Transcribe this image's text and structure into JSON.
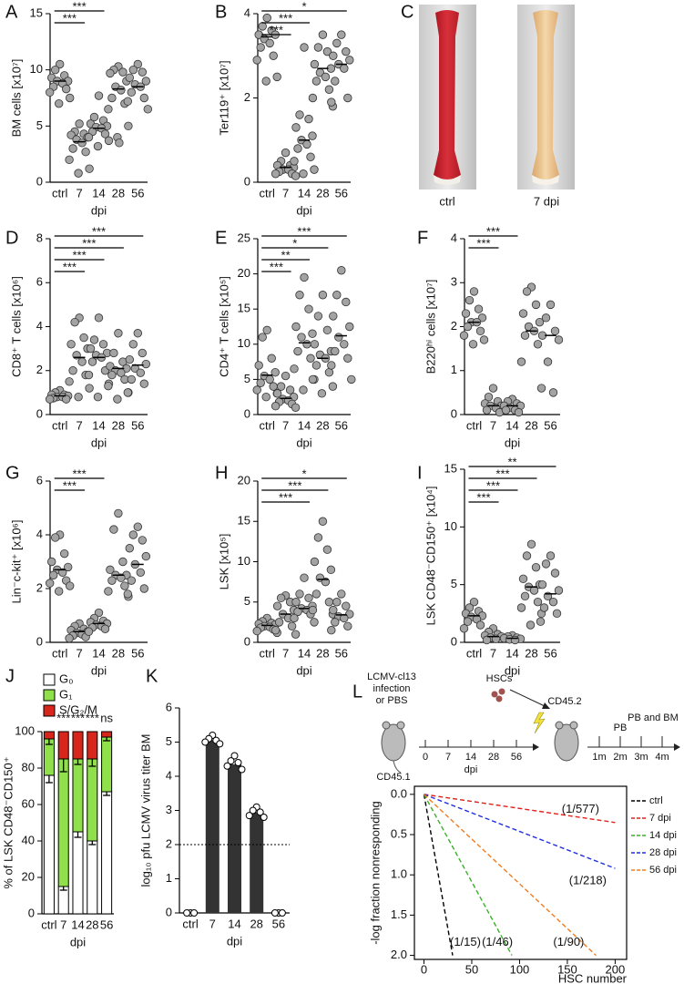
{
  "chart_data": [
    {
      "type": "dotplot",
      "label": "A",
      "ylabel": "BM cells [x10⁷]",
      "xlabel": "dpi",
      "color": "#a3a3a3",
      "categories": [
        "ctrl",
        "7",
        "14",
        "28",
        "56"
      ],
      "values": [
        [
          10.5,
          10,
          9.5,
          9.3,
          9,
          9,
          8.8,
          8.5,
          8.3,
          8,
          7.5,
          7
        ],
        [
          5.2,
          4.5,
          4.3,
          4.2,
          4,
          3.8,
          3.5,
          3,
          2.7,
          2,
          1.2,
          0.8
        ],
        [
          7.7,
          5.8,
          5.5,
          5.2,
          5,
          4.9,
          4.8,
          4.5,
          4.3,
          4,
          3.7,
          3.2
        ],
        [
          10.3,
          10,
          9.8,
          9.7,
          9,
          8.5,
          8.2,
          7.5,
          7,
          6.5,
          5,
          4,
          3.5
        ],
        [
          10.5,
          10,
          9.8,
          9.3,
          9,
          8.7,
          8.5,
          8,
          7.5,
          7.2,
          6.5
        ]
      ],
      "means": [
        9,
        3.6,
        4.8,
        8.3,
        8.5
      ],
      "ylim": [
        0,
        15
      ],
      "yticks": [
        0,
        5,
        10,
        15
      ],
      "significance": [
        {
          "label": "***",
          "span": [
            0,
            2
          ]
        },
        {
          "label": "***",
          "span": [
            0,
            1
          ]
        }
      ]
    },
    {
      "type": "dotplot",
      "label": "B",
      "ylabel": "Ter119⁺ [x10⁷]",
      "xlabel": "dpi",
      "color": "#a3a3a3",
      "categories": [
        "ctrl",
        "7",
        "14",
        "28",
        "56"
      ],
      "values": [
        [
          3.9,
          3.7,
          3.6,
          3.5,
          3.5,
          3.4,
          3.3,
          3.2,
          3.0,
          2.9,
          2.5,
          2.4
        ],
        [
          0.7,
          0.5,
          0.4,
          0.4,
          0.35,
          0.3,
          0.3,
          0.25,
          0.2,
          0.2,
          0.15
        ],
        [
          3.2,
          1.6,
          1.5,
          1.3,
          1.1,
          1.0,
          0.9,
          0.8,
          0.6,
          0.5,
          0.3,
          0.2
        ],
        [
          3.5,
          3.2,
          3.1,
          2.8,
          2.7,
          2.6,
          2.5,
          2.4,
          2.2,
          2.0,
          1.8
        ],
        [
          3.5,
          3.3,
          3.1,
          3.0,
          2.9,
          2.8,
          2.7,
          2.4,
          2.0,
          1.9
        ]
      ],
      "means": [
        3.45,
        0.35,
        1.0,
        2.7,
        2.8
      ],
      "ylim": [
        0,
        4
      ],
      "yticks": [
        0,
        2,
        4
      ],
      "significance": [
        {
          "label": "*",
          "span": [
            0,
            4
          ]
        },
        {
          "label": "***",
          "span": [
            0,
            2
          ]
        },
        {
          "label": "***",
          "span": [
            0,
            1
          ]
        }
      ]
    },
    {
      "type": "dotplot",
      "label": "D",
      "ylabel": "CD8⁺ T cells [x10⁶]",
      "xlabel": "dpi",
      "color": "#a3a3a3",
      "categories": [
        "ctrl",
        "7",
        "14",
        "28",
        "56"
      ],
      "values": [
        [
          1.1,
          1.0,
          0.9,
          0.9,
          0.85,
          0.8,
          0.8,
          0.75,
          0.7,
          0.7
        ],
        [
          4.4,
          4.2,
          3.5,
          3.2,
          3.0,
          2.7,
          2.4,
          2.0,
          1.8,
          1.5,
          1.2,
          0.8
        ],
        [
          4.4,
          3.4,
          3.2,
          3.0,
          2.8,
          2.7,
          2.6,
          2.4,
          2.0,
          1.8,
          1.4,
          0.8
        ],
        [
          3.7,
          2.8,
          2.4,
          2.2,
          2.1,
          2.0,
          1.9,
          1.8,
          1.6,
          1.3,
          1.0,
          0.7
        ],
        [
          3.7,
          3.2,
          2.8,
          2.5,
          2.3,
          2.1,
          1.9,
          1.6,
          1.4,
          1.0
        ]
      ],
      "means": [
        0.85,
        2.6,
        2.6,
        2.1,
        2.25
      ],
      "ylim": [
        0,
        8
      ],
      "yticks": [
        0,
        2,
        4,
        6,
        8
      ],
      "significance": [
        {
          "label": "***",
          "span": [
            0,
            4
          ]
        },
        {
          "label": "***",
          "span": [
            0,
            3
          ]
        },
        {
          "label": "***",
          "span": [
            0,
            2
          ]
        },
        {
          "label": "***",
          "span": [
            0,
            1
          ]
        }
      ]
    },
    {
      "type": "dotplot",
      "label": "E",
      "ylabel": "CD4⁺ T cells [x10⁵]",
      "xlabel": "dpi",
      "color": "#a3a3a3",
      "categories": [
        "ctrl",
        "7",
        "14",
        "28",
        "56"
      ],
      "values": [
        [
          12,
          11,
          8,
          7,
          6,
          5.5,
          5,
          4.5,
          4,
          3.5,
          3,
          2.5
        ],
        [
          5.5,
          4,
          3.5,
          3,
          2.5,
          2.2,
          2,
          1.8,
          1.5,
          1.2,
          1
        ],
        [
          19.5,
          17,
          15,
          12.5,
          11.5,
          11,
          10,
          9,
          8,
          6.5,
          5,
          3.5
        ],
        [
          17,
          14,
          12,
          10,
          9,
          8.5,
          8,
          7,
          6,
          5,
          4,
          3
        ],
        [
          20.5,
          17,
          16,
          14,
          12.5,
          11,
          10,
          9,
          8,
          7,
          5
        ]
      ],
      "means": [
        5.6,
        2.3,
        10.2,
        8,
        11.2
      ],
      "ylim": [
        0,
        25
      ],
      "yticks": [
        0,
        5,
        10,
        15,
        20,
        25
      ],
      "significance": [
        {
          "label": "***",
          "span": [
            0,
            4
          ]
        },
        {
          "label": "*",
          "span": [
            0,
            3
          ]
        },
        {
          "label": "**",
          "span": [
            0,
            2
          ]
        },
        {
          "label": "***",
          "span": [
            0,
            1
          ]
        }
      ]
    },
    {
      "type": "dotplot",
      "label": "F",
      "ylabel": "B220ʰⁱ cells [x10⁷]",
      "xlabel": "dpi",
      "color": "#a3a3a3",
      "categories": [
        "ctrl",
        "7",
        "14",
        "28",
        "56"
      ],
      "values": [
        [
          2.8,
          2.6,
          2.4,
          2.3,
          2.2,
          2.1,
          2.1,
          2.0,
          1.9,
          1.8,
          1.7,
          1.6
        ],
        [
          0.6,
          0.4,
          0.3,
          0.25,
          0.2,
          0.2,
          0.15,
          0.1,
          0.05
        ],
        [
          0.35,
          0.3,
          0.25,
          0.2,
          0.2,
          0.15,
          0.1,
          0.1,
          0.05
        ],
        [
          2.9,
          2.8,
          2.5,
          2.3,
          2.1,
          2.0,
          1.9,
          1.8,
          1.6,
          1.2,
          0.6
        ],
        [
          2.5,
          2.2,
          1.9,
          1.8,
          1.7,
          1.2,
          0.5
        ]
      ],
      "means": [
        2.1,
        0.2,
        0.2,
        1.9,
        1.8
      ],
      "ylim": [
        0,
        4
      ],
      "yticks": [
        0,
        1,
        2,
        3,
        4
      ],
      "significance": [
        {
          "label": "***",
          "span": [
            0,
            2
          ]
        },
        {
          "label": "***",
          "span": [
            0,
            1
          ]
        }
      ]
    },
    {
      "type": "dotplot",
      "label": "G",
      "ylabel": "Lin⁻c-kit⁺ [x10⁶]",
      "xlabel": "dpi",
      "color": "#a3a3a3",
      "categories": [
        "ctrl",
        "7",
        "14",
        "28",
        "56"
      ],
      "values": [
        [
          4.0,
          3.9,
          3.3,
          3.0,
          2.8,
          2.7,
          2.6,
          2.5,
          2.3,
          2.2,
          2.1,
          1.9
        ],
        [
          0.7,
          0.6,
          0.5,
          0.45,
          0.4,
          0.35,
          0.3,
          0.25,
          0.2,
          0.15
        ],
        [
          1.1,
          0.9,
          0.8,
          0.75,
          0.7,
          0.65,
          0.6,
          0.55,
          0.5,
          0.4
        ],
        [
          4.8,
          4.2,
          3.0,
          2.7,
          2.5,
          2.5,
          2.4,
          2.3,
          2.1,
          1.9,
          1.7
        ],
        [
          4.3,
          4.0,
          3.8,
          3.5,
          3.2,
          2.9,
          2.6,
          2.3,
          2.0,
          1.8
        ]
      ],
      "means": [
        2.7,
        0.4,
        0.7,
        2.5,
        2.9
      ],
      "ylim": [
        0,
        6
      ],
      "yticks": [
        0,
        2,
        4,
        6
      ],
      "significance": [
        {
          "label": "***",
          "span": [
            0,
            2
          ]
        },
        {
          "label": "***",
          "span": [
            0,
            1
          ]
        }
      ]
    },
    {
      "type": "dotplot",
      "label": "H",
      "ylabel": "LSK  [x10⁵]",
      "xlabel": "dpi",
      "color": "#a3a3a3",
      "categories": [
        "ctrl",
        "7",
        "14",
        "28",
        "56"
      ],
      "values": [
        [
          3,
          2.6,
          2.4,
          2.3,
          2.2,
          2,
          1.9,
          1.8,
          1.6,
          1.4,
          1.2
        ],
        [
          5.8,
          5.5,
          5,
          4.5,
          4,
          3.5,
          3,
          2.5,
          2,
          1.5,
          1
        ],
        [
          8,
          6,
          5.5,
          5,
          4.5,
          4.2,
          4,
          3.8,
          3.5,
          3,
          2.5
        ],
        [
          15,
          13,
          11.5,
          10,
          9,
          8,
          7.5,
          6,
          5,
          4,
          3.5
        ],
        [
          6,
          5,
          4.5,
          4,
          3.5,
          3.2,
          3,
          2.5,
          2,
          1.5
        ]
      ],
      "means": [
        2.1,
        3.5,
        4.2,
        7.8,
        3.4
      ],
      "ylim": [
        0,
        20
      ],
      "yticks": [
        0,
        5,
        10,
        15,
        20
      ],
      "significance": [
        {
          "label": "*",
          "span": [
            0,
            4
          ]
        },
        {
          "label": "***",
          "span": [
            0,
            3
          ]
        },
        {
          "label": "***",
          "span": [
            0,
            2
          ]
        }
      ]
    },
    {
      "type": "dotplot",
      "label": "I",
      "ylabel": "LSK CD48⁻CD150⁺ [x10⁴]",
      "xlabel": "dpi",
      "color": "#a3a3a3",
      "categories": [
        "ctrl",
        "7",
        "14",
        "28",
        "56"
      ],
      "values": [
        [
          3.5,
          3.0,
          2.7,
          2.5,
          2.3,
          2.2,
          2.0,
          1.8,
          1.5,
          1.2
        ],
        [
          1.2,
          0.9,
          0.7,
          0.6,
          0.5,
          0.4,
          0.3,
          0.2
        ],
        [
          0.6,
          0.5,
          0.4,
          0.35,
          0.3,
          0.25,
          0.2
        ],
        [
          8.5,
          7.5,
          6.5,
          5.5,
          5,
          4.8,
          4.5,
          4,
          3.5,
          3,
          2.5,
          1.5
        ],
        [
          7.5,
          6.8,
          6,
          5,
          4.5,
          4,
          3.5,
          3,
          2.5,
          1.8
        ]
      ],
      "means": [
        2.3,
        0.5,
        0.35,
        4.8,
        4.2
      ],
      "ylim": [
        0,
        15
      ],
      "yticks": [
        0,
        5,
        10,
        15
      ],
      "significance": [
        {
          "label": "**",
          "span": [
            0,
            4
          ]
        },
        {
          "label": "***",
          "span": [
            0,
            3
          ]
        },
        {
          "label": "***",
          "span": [
            0,
            2
          ]
        },
        {
          "label": "***",
          "span": [
            0,
            1
          ]
        }
      ]
    },
    {
      "type": "stacked_bar",
      "label": "J",
      "ylabel": "% of LSK CD48⁻CD150⁺",
      "xlabel": "dpi",
      "legend": "top-left",
      "categories": [
        "ctrl",
        "7",
        "14",
        "28",
        "56"
      ],
      "series": [
        {
          "name": "G₀",
          "color": "#ffffff",
          "values": [
            76,
            15,
            45,
            40,
            67
          ],
          "errors": [
            4,
            2,
            3,
            2,
            2
          ]
        },
        {
          "name": "G₁",
          "color": "#8fe04a",
          "values": [
            20,
            70,
            40,
            45,
            30
          ],
          "errors": [
            3,
            7,
            3,
            4,
            2
          ]
        },
        {
          "name": "S/G₂/M",
          "color": "#d9261c",
          "values": [
            4,
            15,
            15,
            15,
            3
          ]
        }
      ],
      "ylim": [
        0,
        100
      ],
      "yticks": [
        0,
        20,
        40,
        60,
        80,
        100
      ],
      "significance": [
        {
          "label": "***",
          "category": 1
        },
        {
          "label": "***",
          "category": 2
        },
        {
          "label": "***",
          "category": 3
        },
        {
          "label": "ns",
          "category": 4
        }
      ]
    },
    {
      "type": "bar",
      "label": "K",
      "ylabel": "log₁₀ pfu LCMV virus titer BM",
      "xlabel": "dpi",
      "color": "#333333",
      "categories": [
        "ctrl",
        "7",
        "14",
        "28",
        "56"
      ],
      "values": [
        0,
        5.05,
        4.35,
        2.95,
        0
      ],
      "points": [
        [
          0,
          0,
          0
        ],
        [
          5.2,
          5.1,
          5.05,
          5.0,
          4.95
        ],
        [
          4.6,
          4.45,
          4.4,
          4.3,
          4.2
        ],
        [
          3.1,
          3.0,
          2.95,
          2.85,
          2.8
        ],
        [
          0,
          0,
          0
        ]
      ],
      "reference_line": 2,
      "ylim": [
        0,
        6
      ],
      "yticks": [
        0,
        1,
        2,
        3,
        4,
        5,
        6
      ]
    },
    {
      "type": "line",
      "xlabel": "HSC number",
      "ylabel": "-log fraction nonresponding",
      "y_inverted": true,
      "legend": "right",
      "series": [
        {
          "name": "ctrl",
          "color": "#000000",
          "label": "(1/15)",
          "x": [
            0,
            30
          ],
          "values": [
            0,
            2.0
          ]
        },
        {
          "name": "7 dpi",
          "color": "#e0201b",
          "label": "(1/577)",
          "x": [
            0,
            200
          ],
          "values": [
            0,
            0.35
          ]
        },
        {
          "name": "14 dpi",
          "color": "#3ab02a",
          "label": "(1/46)",
          "x": [
            0,
            92
          ],
          "values": [
            0,
            2.0
          ]
        },
        {
          "name": "28 dpi",
          "color": "#1f2fe0",
          "label": "(1/218)",
          "x": [
            0,
            200
          ],
          "values": [
            0,
            0.92
          ]
        },
        {
          "name": "56 dpi",
          "color": "#f07c20",
          "label": "(1/90)",
          "x": [
            0,
            180
          ],
          "values": [
            0,
            2.0
          ]
        }
      ],
      "xlim": [
        -10,
        212
      ],
      "xticks": [
        0,
        50,
        100,
        150,
        200
      ],
      "ylim": [
        -0.1,
        2.05
      ],
      "yticks": [
        {
          "value": 0,
          "label": "0.0"
        },
        0.5,
        {
          "value": 1,
          "label": "1.0"
        },
        1.5,
        {
          "value": 2,
          "label": "2.0"
        }
      ]
    }
  ],
  "photo": {
    "label": "C",
    "captions": [
      "ctrl",
      "7 dpi"
    ]
  },
  "schematic": {
    "label": "L",
    "infection": [
      "LCMV-cl13",
      "infection",
      "or PBS"
    ],
    "donor": "CD45.1",
    "timeline": [
      "0",
      "7",
      "14",
      "28",
      "56"
    ],
    "timeline_unit": "dpi",
    "cells": "HSCs",
    "recipient": "CD45.2",
    "sampling": [
      "PB",
      "PB and BM"
    ],
    "months": [
      "1m",
      "2m",
      "3m",
      "4m"
    ]
  }
}
